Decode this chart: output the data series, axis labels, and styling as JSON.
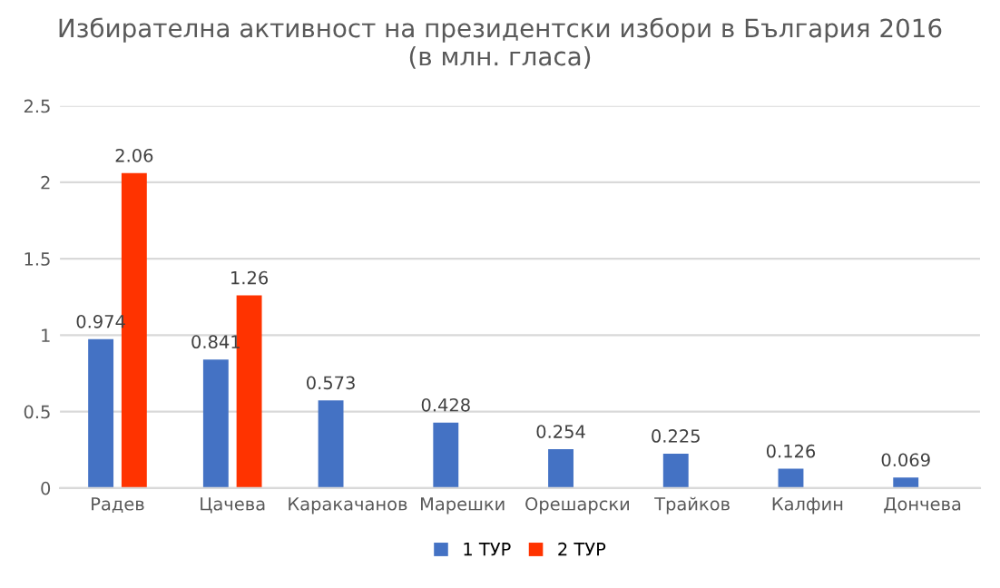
{
  "chart_data": {
    "type": "bar",
    "title": "Избирателна активност на президентски избори в България 2016\n(в млн. гласа)",
    "categories": [
      "Радев",
      "Цачева",
      "Каракачанов",
      "Марешки",
      "Орешарски",
      "Трайков",
      "Калфин",
      "Дончева"
    ],
    "series": [
      {
        "name": "1 ТУР",
        "color": "#4472c4",
        "values": [
          0.974,
          0.841,
          0.573,
          0.428,
          0.254,
          0.225,
          0.126,
          0.069
        ]
      },
      {
        "name": "2 ТУР",
        "color": "#ff3300",
        "values": [
          2.06,
          1.26,
          null,
          null,
          null,
          null,
          null,
          null
        ]
      }
    ],
    "ylim": [
      0,
      2.5
    ],
    "yticks": [
      0,
      0.5,
      1,
      1.5,
      2,
      2.5
    ],
    "grid": "y",
    "legend": "bottom",
    "data_labels": true
  }
}
